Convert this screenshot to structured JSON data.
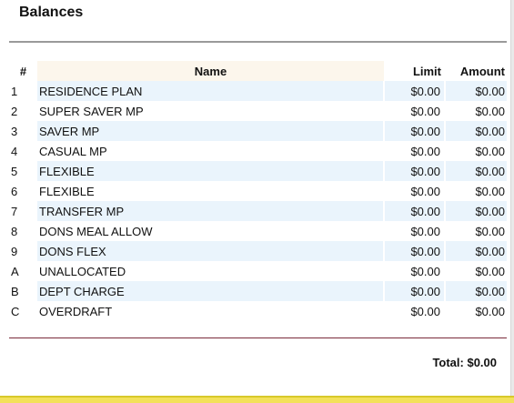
{
  "panel": {
    "title": "Balances"
  },
  "table": {
    "headers": {
      "num": "#",
      "name": "Name",
      "limit": "Limit",
      "amount": "Amount"
    },
    "rows": [
      {
        "num": "1",
        "name": "RESIDENCE PLAN",
        "limit": "$0.00",
        "amount": "$0.00"
      },
      {
        "num": "2",
        "name": "SUPER SAVER MP",
        "limit": "$0.00",
        "amount": "$0.00"
      },
      {
        "num": "3",
        "name": "SAVER MP",
        "limit": "$0.00",
        "amount": "$0.00"
      },
      {
        "num": "4",
        "name": "CASUAL MP",
        "limit": "$0.00",
        "amount": "$0.00"
      },
      {
        "num": "5",
        "name": "FLEXIBLE",
        "limit": "$0.00",
        "amount": "$0.00"
      },
      {
        "num": "6",
        "name": "FLEXIBLE",
        "limit": "$0.00",
        "amount": "$0.00"
      },
      {
        "num": "7",
        "name": "TRANSFER MP",
        "limit": "$0.00",
        "amount": "$0.00"
      },
      {
        "num": "8",
        "name": "DONS MEAL ALLOW",
        "limit": "$0.00",
        "amount": "$0.00"
      },
      {
        "num": "9",
        "name": "DONS FLEX",
        "limit": "$0.00",
        "amount": "$0.00"
      },
      {
        "num": "A",
        "name": "UNALLOCATED",
        "limit": "$0.00",
        "amount": "$0.00"
      },
      {
        "num": "B",
        "name": "DEPT CHARGE",
        "limit": "$0.00",
        "amount": "$0.00"
      },
      {
        "num": "C",
        "name": "OVERDRAFT",
        "limit": "$0.00",
        "amount": "$0.00"
      }
    ]
  },
  "footer": {
    "total": "Total: $0.00"
  },
  "colors": {
    "header_name_bg": "#fcf6ec",
    "row_shade": "#eaf4fc",
    "total_rule": "#7a2a3a",
    "bottom_bar": "#f3e15a"
  }
}
